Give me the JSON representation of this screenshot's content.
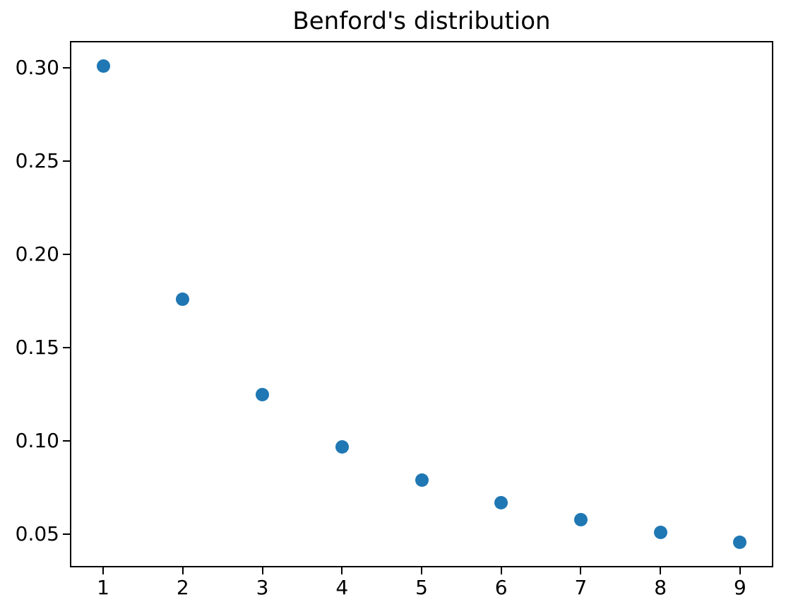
{
  "chart_data": {
    "type": "scatter",
    "title": "Benford's distribution",
    "x": [
      1,
      2,
      3,
      4,
      5,
      6,
      7,
      8,
      9
    ],
    "y": [
      0.30103,
      0.17609,
      0.12494,
      0.09691,
      0.07918,
      0.06695,
      0.05799,
      0.05115,
      0.04576
    ],
    "xlabel": "",
    "ylabel": "",
    "xlim": [
      0.6,
      9.4
    ],
    "ylim": [
      0.033,
      0.3138
    ],
    "x_ticks": [
      1,
      2,
      3,
      4,
      5,
      6,
      7,
      8,
      9
    ],
    "x_tick_labels": [
      "1",
      "2",
      "3",
      "4",
      "5",
      "6",
      "7",
      "8",
      "9"
    ],
    "y_ticks": [
      0.05,
      0.1,
      0.15,
      0.2,
      0.25,
      0.3
    ],
    "y_tick_labels": [
      "0.05",
      "0.10",
      "0.15",
      "0.20",
      "0.25",
      "0.30"
    ],
    "marker_color": "#1f77b4",
    "marker_size_px": 19,
    "grid": false,
    "legend_position": "none",
    "background_color": "#ffffff",
    "spine_color": "#000000",
    "text_color": "#000000"
  }
}
